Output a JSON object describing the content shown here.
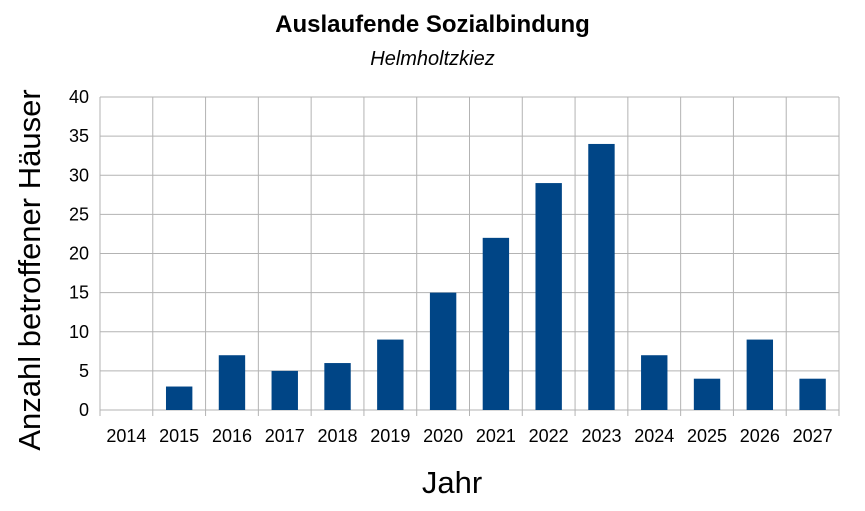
{
  "chart_data": {
    "type": "bar",
    "title": "Auslaufende Sozialbindung",
    "subtitle": "Helmholtzkiez",
    "xlabel": "Jahr",
    "ylabel": "Anzahl betroffener Häuser",
    "categories": [
      "2014",
      "2015",
      "2016",
      "2017",
      "2018",
      "2019",
      "2020",
      "2021",
      "2022",
      "2023",
      "2024",
      "2025",
      "2026",
      "2027"
    ],
    "values": [
      0,
      3,
      7,
      5,
      6,
      9,
      15,
      22,
      29,
      34,
      7,
      4,
      9,
      4
    ],
    "ylim": [
      0,
      40
    ],
    "yticks": [
      0,
      5,
      10,
      15,
      20,
      25,
      30,
      35,
      40
    ],
    "grid": true,
    "legend": "none",
    "bar_color": "#004586"
  }
}
